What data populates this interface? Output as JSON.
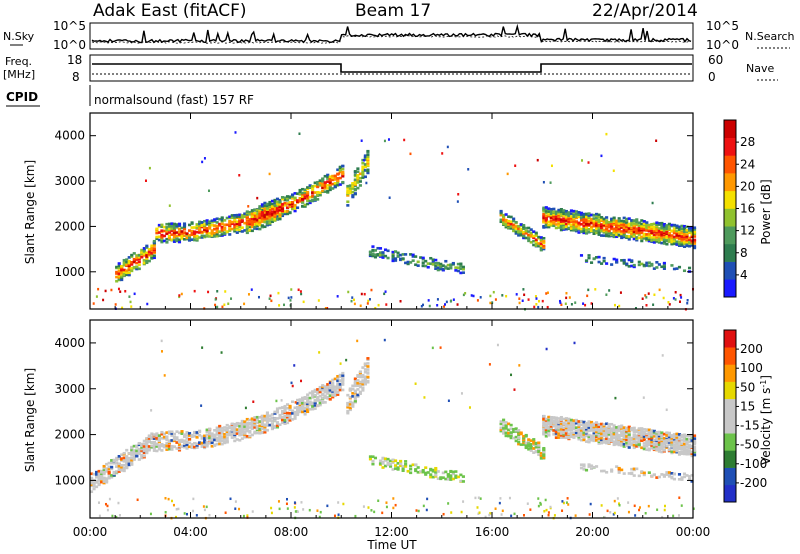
{
  "header": {
    "radar": "Adak East (fitACF)",
    "beam": "Beam 17",
    "date": "22/Apr/2014"
  },
  "strips": {
    "noise": {
      "left_label": "N.Sky",
      "right_label": "N.Search",
      "left_ticks": [
        "10^5",
        "10^0"
      ],
      "right_ticks": [
        "10^5",
        "10^0"
      ]
    },
    "freq": {
      "left_label_1": "Freq.",
      "left_label_2": "[MHz]",
      "right_label": "Nave",
      "left_ticks": [
        "18",
        "8"
      ],
      "right_ticks": [
        "60",
        "0"
      ]
    },
    "cpid": {
      "label": "CPID",
      "text": "normalsound (fast) 157 RF"
    }
  },
  "colors": {
    "power": [
      "#1a1aff",
      "#1f4fb5",
      "#2e7d4f",
      "#4e9a5c",
      "#90c22f",
      "#f4e000",
      "#ff9800",
      "#ff5500",
      "#ee1111",
      "#cc0000"
    ],
    "velocity": [
      "#2230c8",
      "#1f4fb5",
      "#2e7d32",
      "#6cc34a",
      "#c8c8c8",
      "#c8c8c8",
      "#e6d800",
      "#ff9800",
      "#ff5500",
      "#e01010"
    ]
  },
  "chart_data": [
    {
      "type": "heatmap",
      "name": "power",
      "xlabel": "",
      "ylabel": "Slant Range [km]",
      "xlim": [
        0,
        24
      ],
      "ylim": [
        180,
        4500
      ],
      "yticks": [
        "1000",
        "2000",
        "3000",
        "4000"
      ],
      "colorbar": {
        "label": "Power [dB]",
        "range": [
          0,
          32
        ],
        "ticks": [
          "4",
          "8",
          "12",
          "16",
          "20",
          "24",
          "28"
        ]
      },
      "regions": [
        {
          "x": [
            1.0,
            10.0
          ],
          "y_start": 950,
          "y_end": 2150,
          "peak_y": 2800,
          "peak_x": 9.0,
          "width": 380,
          "fill": 0.55,
          "level": 0.5
        },
        {
          "x": [
            6.2,
            7.6
          ],
          "y_start": 2100,
          "y_end": 2400,
          "width": 500,
          "fill": 0.5,
          "level": 0.55
        },
        {
          "x": [
            10.2,
            11.0
          ],
          "y_start": 2700,
          "y_end": 3400,
          "width": 500,
          "fill": 0.45,
          "level": 0.3
        },
        {
          "x": [
            11.1,
            14.8
          ],
          "y_start": 1450,
          "y_end": 1050,
          "width": 200,
          "fill": 0.4,
          "level": 0.15
        },
        {
          "x": [
            16.3,
            18.0
          ],
          "y_start": 2200,
          "y_end": 1600,
          "width": 280,
          "fill": 0.6,
          "level": 0.4
        },
        {
          "x": [
            18.0,
            24.0
          ],
          "y_start": 2200,
          "y_end": 1750,
          "width": 420,
          "fill": 0.8,
          "level": 0.5
        },
        {
          "x": [
            19.5,
            24.0
          ],
          "y_start": 1300,
          "y_end": 1050,
          "width": 120,
          "fill": 0.3,
          "level": 0.1
        }
      ]
    },
    {
      "type": "heatmap",
      "name": "velocity",
      "xlabel": "Time UT",
      "ylabel": "Slant Range [km]",
      "xlim": [
        0,
        24
      ],
      "ylim": [
        180,
        4500
      ],
      "xticks": [
        "00:00",
        "04:00",
        "08:00",
        "12:00",
        "16:00",
        "20:00",
        "00:00"
      ],
      "yticks": [
        "1000",
        "2000",
        "3000",
        "4000"
      ],
      "colorbar": {
        "label": "Velocity [m s",
        "label_sup": "-1",
        "label_close": "]",
        "range": [
          -250,
          250
        ],
        "ticks": [
          "200",
          "100",
          "50",
          "15",
          "-15",
          "-50",
          "-100",
          "-200"
        ]
      },
      "regions": [
        {
          "x": [
            0.0,
            10.0
          ],
          "y_start": 950,
          "y_end": 2150,
          "peak_y": 2800,
          "peak_x": 9.0,
          "width": 380,
          "fill": 0.55,
          "level": 0.5
        },
        {
          "x": [
            10.2,
            11.0
          ],
          "y_start": 2700,
          "y_end": 3400,
          "width": 500,
          "fill": 0.45,
          "level": 0.5
        },
        {
          "x": [
            11.1,
            14.8
          ],
          "y_start": 1450,
          "y_end": 1050,
          "width": 200,
          "fill": 0.4,
          "level": 0.35
        },
        {
          "x": [
            16.3,
            18.0
          ],
          "y_start": 2200,
          "y_end": 1600,
          "width": 280,
          "fill": 0.6,
          "level": 0.4
        },
        {
          "x": [
            18.0,
            24.0
          ],
          "y_start": 2200,
          "y_end": 1750,
          "width": 420,
          "fill": 0.8,
          "level": 0.5
        },
        {
          "x": [
            19.5,
            24.0
          ],
          "y_start": 1300,
          "y_end": 1050,
          "width": 120,
          "fill": 0.3,
          "level": 0.5
        }
      ]
    }
  ]
}
